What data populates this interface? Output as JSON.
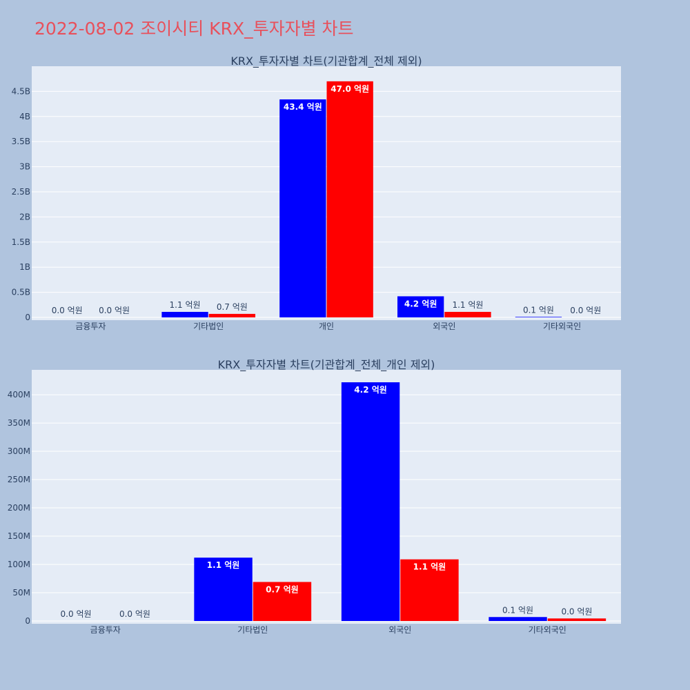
{
  "page_title": "2022-08-02 조이시티 KRX_투자자별 차트",
  "colors": {
    "background": "#b0c4de",
    "plot_background": "#e5ecf6",
    "gridline": "#ffffff",
    "series_1": "#0000ff",
    "series_2": "#ff0000",
    "title": "#e8505b",
    "text": "#2a3f5f"
  },
  "chart_data": [
    {
      "type": "bar",
      "title": "KRX_투자자별 차트(기관합계_전체 제외)",
      "categories": [
        "금융투자",
        "기타법인",
        "개인",
        "외국인",
        "기타외국인"
      ],
      "series": [
        {
          "color": "#0000ff",
          "values": [
            0,
            110000000,
            4340000000,
            420000000,
            10000000
          ],
          "labels": [
            "0.0 억원",
            "1.1 억원",
            "43.4 억원",
            "4.2 억원",
            "0.1 억원"
          ]
        },
        {
          "color": "#ff0000",
          "values": [
            0,
            70000000,
            4700000000,
            110000000,
            0
          ],
          "labels": [
            "0.0 억원",
            "0.7 억원",
            "47.0 억원",
            "1.1 억원",
            "0.0 억원"
          ]
        }
      ],
      "ylim": [
        0,
        5000000000
      ],
      "yticks": [
        0,
        500000000,
        1000000000,
        1500000000,
        2000000000,
        2500000000,
        3000000000,
        3500000000,
        4000000000,
        4500000000
      ],
      "ytick_labels": [
        "0",
        "0.5B",
        "1B",
        "1.5B",
        "2B",
        "2.5B",
        "3B",
        "3.5B",
        "4B",
        "4.5B"
      ],
      "grid": true
    },
    {
      "type": "bar",
      "title": "KRX_투자자별 차트(기관합계_전체_개인 제외)",
      "categories": [
        "금융투자",
        "기타법인",
        "외국인",
        "기타외국인"
      ],
      "series": [
        {
          "color": "#0000ff",
          "values": [
            0,
            112000000,
            422000000,
            7000000
          ],
          "labels": [
            "0.0 억원",
            "1.1 억원",
            "4.2 억원",
            "0.1 억원"
          ]
        },
        {
          "color": "#ff0000",
          "values": [
            0,
            69000000,
            109000000,
            4500000
          ],
          "labels": [
            "0.0 억원",
            "0.7 억원",
            "1.1 억원",
            "0.0 억원"
          ]
        }
      ],
      "ylim": [
        0,
        444000000
      ],
      "yticks": [
        0,
        50000000,
        100000000,
        150000000,
        200000000,
        250000000,
        300000000,
        350000000,
        400000000
      ],
      "ytick_labels": [
        "0",
        "50M",
        "100M",
        "150M",
        "200M",
        "250M",
        "300M",
        "350M",
        "400M"
      ],
      "grid": true
    }
  ]
}
